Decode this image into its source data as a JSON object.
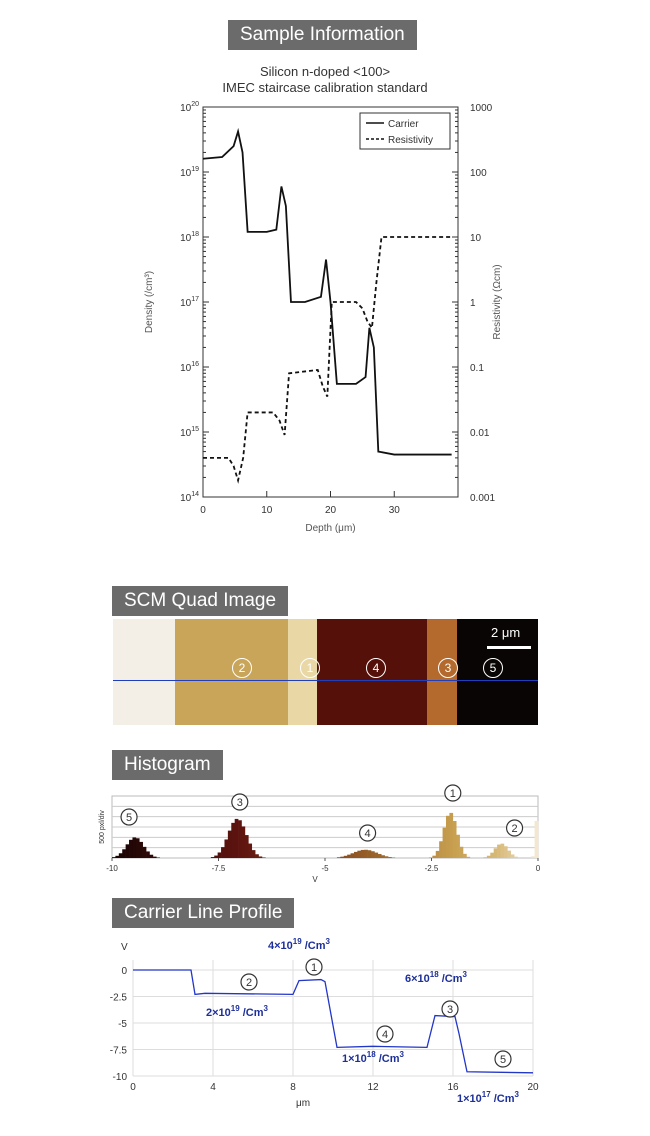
{
  "sample": {
    "header": "Sample Information",
    "subtitle1": "Silicon n-doped <100>",
    "subtitle2": "IMEC  staircase calibration standard"
  },
  "scm": {
    "header": "SCM Quad Image",
    "scale_label": "2 μm",
    "markers": [
      "2",
      "1",
      "4",
      "3",
      "5"
    ],
    "band_colors": [
      "#f3efe7",
      "#c9a55a",
      "#e9d8a6",
      "#551009",
      "#b36a2c",
      "#0a0505"
    ],
    "line_color": "#1f3fbf"
  },
  "histogram": {
    "header": "Histogram",
    "markers": [
      "5",
      "3",
      "4",
      "1",
      "2"
    ]
  },
  "profile": {
    "header": "Carrier Line Profile",
    "ann_4e19": "4×10",
    "ann_4e19_exp": "19",
    "ann_6e18": "6×10",
    "ann_6e18_exp": "18",
    "ann_2e19": "2×10",
    "ann_2e19_exp": "19",
    "ann_1e18": "1×10",
    "ann_1e18_exp": "18",
    "ann_1e17": "1×10",
    "ann_1e17_exp": "17",
    "unit": " /Cm",
    "unit_exp": "3",
    "markers": [
      "2",
      "1",
      "4",
      "3",
      "5"
    ]
  },
  "chart_data": [
    {
      "type": "line",
      "xlabel": "Depth (μm)",
      "ylabel": "Density (/cm³)",
      "y2label": "Resistivity (Ωcm)",
      "xlim": [
        0,
        40
      ],
      "ylim": [
        100000000000000.0,
        1e+20
      ],
      "y2lim": [
        0.001,
        1000
      ],
      "yscale": "log",
      "x_ticks": [
        "0",
        "10",
        "20",
        "30"
      ],
      "y_ticks": [
        "10²⁰",
        "10¹⁹",
        "10¹⁸",
        "10¹⁷",
        "10¹⁶",
        "10¹⁵",
        "10¹⁴"
      ],
      "y2_ticks": [
        "1000",
        "100",
        "10",
        "1",
        "0.1",
        "0.01",
        "0.001"
      ],
      "legend": "top-right",
      "series": [
        {
          "name": "Carrier",
          "style": "solid",
          "x": [
            0,
            3,
            4.8,
            5.5,
            6.2,
            7,
            10,
            11.5,
            12.3,
            13,
            13.8,
            16,
            18.5,
            19.3,
            20,
            21,
            24,
            25.5,
            26.1,
            26.8,
            27.5,
            30,
            35,
            39
          ],
          "y": [
            1.6e+19,
            1.7e+19,
            2.5e+19,
            4.2e+19,
            2e+19,
            1.2e+18,
            1.2e+18,
            1.3e+18,
            6e+18,
            3e+18,
            1e+17,
            1e+17,
            1.2e+17,
            4.5e+17,
            1e+17,
            5500000000000000.0,
            5500000000000000.0,
            7000000000000000.0,
            4e+16,
            2e+16,
            500000000000000.0,
            450000000000000.0,
            450000000000000.0,
            450000000000000.0
          ]
        },
        {
          "name": "Resistivity",
          "style": "dashed",
          "x": [
            0,
            4,
            4.8,
            5.5,
            6.3,
            7,
            11,
            12,
            12.8,
            13.5,
            18,
            18.8,
            19.5,
            20.2,
            24,
            25,
            25.8,
            26.5,
            27.2,
            28,
            35,
            39
          ],
          "y": [
            0.004,
            0.004,
            0.003,
            0.0018,
            0.004,
            0.02,
            0.02,
            0.015,
            0.009,
            0.08,
            0.09,
            0.05,
            0.035,
            1.0,
            1.0,
            0.8,
            0.5,
            0.4,
            2,
            10,
            10,
            10
          ]
        }
      ]
    },
    {
      "type": "bar",
      "xlabel": "V",
      "ylabel": "500 pxl/div",
      "xlim": [
        -10,
        0
      ],
      "x_ticks": [
        "-10",
        "-7.5",
        "-5",
        "-2.5",
        "0"
      ],
      "series": [
        {
          "name": "5",
          "center": -9.5,
          "peak": 1
        },
        {
          "name": "3",
          "center": -7.1,
          "peak": 1.9
        },
        {
          "name": "4",
          "center": -4.1,
          "peak": 0.4
        },
        {
          "name": "1",
          "center": -2.1,
          "peak": 2.2
        },
        {
          "name": "2",
          "center": -0.9,
          "peak": 0.7
        },
        {
          "name": "",
          "center": -0.05,
          "peak": 2.3
        }
      ]
    },
    {
      "type": "line",
      "xlabel": "μm",
      "ylabel": "V",
      "xlim": [
        0,
        20
      ],
      "ylim": [
        -10,
        0
      ],
      "x_ticks": [
        "0",
        "4",
        "8",
        "12",
        "16",
        "20"
      ],
      "y_ticks": [
        "0",
        "-2.5",
        "-5",
        "-7.5",
        "-10"
      ],
      "series": [
        {
          "name": "",
          "x": [
            0,
            2.9,
            3.1,
            3.6,
            8,
            8.3,
            9.4,
            9.6,
            10.2,
            12,
            14.7,
            15.1,
            16.1,
            16.3,
            16.7,
            20
          ],
          "y": [
            0,
            0,
            -2.3,
            -2.2,
            -2.3,
            -1.0,
            -0.9,
            -1.1,
            -7.3,
            -7.2,
            -7.3,
            -4.3,
            -4.4,
            -6,
            -9.6,
            -9.7
          ]
        }
      ]
    }
  ]
}
